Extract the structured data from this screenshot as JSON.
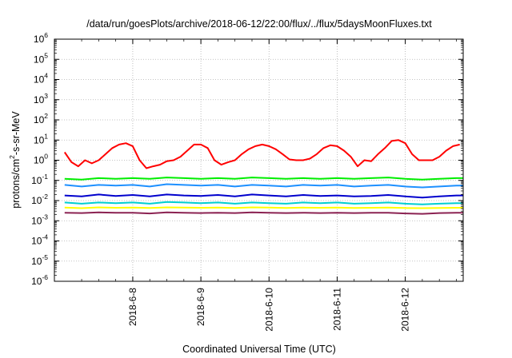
{
  "chart_data": {
    "type": "line",
    "title": "/data/run/goesPlots/archive/2018-06-12/22:00/flux/../flux/5daysMoonFluxes.txt",
    "xlabel": "Coordinated Universal Time (UTC)",
    "ylabel": "protons/cm²-s-sr-MeV",
    "ylabel_parts": [
      "protons/cm",
      "2",
      "-s-sr-MeV"
    ],
    "yscale": "log",
    "ylim": [
      1e-06,
      1000000.0
    ],
    "y_ticks": [
      {
        "value": -6,
        "base": "10",
        "exp": "-6"
      },
      {
        "value": -5,
        "base": "10",
        "exp": "-5"
      },
      {
        "value": -4,
        "base": "10",
        "exp": "-4"
      },
      {
        "value": -3,
        "base": "10",
        "exp": "-3"
      },
      {
        "value": -2,
        "base": "10",
        "exp": "-2"
      },
      {
        "value": -1,
        "base": "10",
        "exp": "-1"
      },
      {
        "value": 0,
        "base": "10",
        "exp": "0"
      },
      {
        "value": 1,
        "base": "10",
        "exp": "1"
      },
      {
        "value": 2,
        "base": "10",
        "exp": "2"
      },
      {
        "value": 3,
        "base": "10",
        "exp": "3"
      },
      {
        "value": 4,
        "base": "10",
        "exp": "4"
      },
      {
        "value": 5,
        "base": "10",
        "exp": "5"
      },
      {
        "value": 6,
        "base": "10",
        "exp": "6"
      }
    ],
    "x_ticks": [
      "2018-6-8",
      "2018-6-9",
      "2018-6-10",
      "2018-6-11",
      "2018-6-12"
    ],
    "xlim_days": [
      6.85,
      12.85
    ],
    "grid": true,
    "series": [
      {
        "color": "#ff0000",
        "x": [
          7.0,
          7.1,
          7.2,
          7.3,
          7.4,
          7.5,
          7.6,
          7.7,
          7.8,
          7.9,
          8.0,
          8.1,
          8.2,
          8.3,
          8.4,
          8.5,
          8.6,
          8.7,
          8.8,
          8.9,
          9.0,
          9.1,
          9.2,
          9.3,
          9.4,
          9.5,
          9.6,
          9.7,
          9.8,
          9.9,
          10.0,
          10.1,
          10.2,
          10.3,
          10.4,
          10.5,
          10.6,
          10.7,
          10.8,
          10.9,
          11.0,
          11.1,
          11.2,
          11.3,
          11.4,
          11.5,
          11.6,
          11.7,
          11.8,
          11.9,
          12.0,
          12.1,
          12.2,
          12.3,
          12.4,
          12.5,
          12.6,
          12.7,
          12.8
        ],
        "y": [
          2.5,
          0.8,
          0.5,
          1.0,
          0.7,
          1.0,
          2.0,
          4.0,
          6.0,
          7.0,
          5.0,
          1.0,
          0.4,
          0.5,
          0.6,
          0.9,
          1.0,
          1.5,
          3.0,
          6.0,
          6.0,
          4.0,
          1.0,
          0.6,
          0.8,
          1.0,
          2.0,
          3.5,
          5.0,
          6.0,
          5.0,
          3.5,
          2.0,
          1.1,
          1.0,
          1.0,
          1.2,
          2.0,
          4.0,
          5.5,
          5.0,
          3.0,
          1.5,
          0.5,
          1.0,
          0.9,
          2.0,
          4.0,
          9.0,
          10.0,
          7.0,
          2.0,
          1.0,
          1.0,
          1.0,
          1.5,
          3.0,
          5.0,
          6.0
        ]
      },
      {
        "color": "#00ee00",
        "x": [
          7.0,
          7.25,
          7.5,
          7.75,
          8.0,
          8.25,
          8.5,
          8.75,
          9.0,
          9.25,
          9.5,
          9.75,
          10.0,
          10.25,
          10.5,
          10.75,
          11.0,
          11.25,
          11.5,
          11.75,
          12.0,
          12.25,
          12.5,
          12.75,
          12.85
        ],
        "y": [
          0.12,
          0.11,
          0.13,
          0.12,
          0.13,
          0.12,
          0.14,
          0.13,
          0.12,
          0.13,
          0.12,
          0.14,
          0.13,
          0.12,
          0.13,
          0.12,
          0.13,
          0.12,
          0.13,
          0.14,
          0.12,
          0.11,
          0.12,
          0.13,
          0.13
        ]
      },
      {
        "color": "#1e90ff",
        "x": [
          7.0,
          7.25,
          7.5,
          7.75,
          8.0,
          8.25,
          8.5,
          8.75,
          9.0,
          9.25,
          9.5,
          9.75,
          10.0,
          10.25,
          10.5,
          10.75,
          11.0,
          11.25,
          11.5,
          11.75,
          12.0,
          12.25,
          12.5,
          12.75,
          12.85
        ],
        "y": [
          0.06,
          0.05,
          0.06,
          0.055,
          0.06,
          0.05,
          0.065,
          0.06,
          0.055,
          0.06,
          0.05,
          0.06,
          0.055,
          0.05,
          0.06,
          0.055,
          0.06,
          0.05,
          0.055,
          0.06,
          0.05,
          0.045,
          0.05,
          0.055,
          0.055
        ]
      },
      {
        "color": "#0000cd",
        "x": [
          7.0,
          7.25,
          7.5,
          7.75,
          8.0,
          8.25,
          8.5,
          8.75,
          9.0,
          9.25,
          9.5,
          9.75,
          10.0,
          10.25,
          10.5,
          10.75,
          11.0,
          11.25,
          11.5,
          11.75,
          12.0,
          12.25,
          12.5,
          12.75,
          12.85
        ],
        "y": [
          0.018,
          0.016,
          0.02,
          0.017,
          0.019,
          0.016,
          0.02,
          0.018,
          0.017,
          0.019,
          0.016,
          0.02,
          0.018,
          0.016,
          0.019,
          0.017,
          0.018,
          0.016,
          0.017,
          0.019,
          0.016,
          0.014,
          0.016,
          0.018,
          0.018
        ]
      },
      {
        "color": "#00ced1",
        "x": [
          7.0,
          7.25,
          7.5,
          7.75,
          8.0,
          8.25,
          8.5,
          8.75,
          9.0,
          9.25,
          9.5,
          9.75,
          10.0,
          10.25,
          10.5,
          10.75,
          11.0,
          11.25,
          11.5,
          11.75,
          12.0,
          12.25,
          12.5,
          12.75,
          12.85
        ],
        "y": [
          0.008,
          0.007,
          0.008,
          0.0075,
          0.008,
          0.007,
          0.0085,
          0.008,
          0.0075,
          0.008,
          0.007,
          0.008,
          0.0075,
          0.007,
          0.008,
          0.0075,
          0.008,
          0.007,
          0.0075,
          0.008,
          0.007,
          0.0065,
          0.007,
          0.0075,
          0.0075
        ]
      },
      {
        "color": "#ffff00",
        "x": [
          7.0,
          7.25,
          7.5,
          7.75,
          8.0,
          8.25,
          8.5,
          8.75,
          9.0,
          9.25,
          9.5,
          9.75,
          10.0,
          10.25,
          10.5,
          10.75,
          11.0,
          11.25,
          11.5,
          11.75,
          12.0,
          12.25,
          12.5,
          12.75,
          12.85
        ],
        "y": [
          0.0045,
          0.0042,
          0.0046,
          0.0044,
          0.0045,
          0.0043,
          0.0046,
          0.0045,
          0.0044,
          0.0045,
          0.0043,
          0.0046,
          0.0045,
          0.0043,
          0.0045,
          0.0044,
          0.0045,
          0.0043,
          0.0044,
          0.0045,
          0.0043,
          0.0042,
          0.0043,
          0.0044,
          0.0044
        ]
      },
      {
        "color": "#8b2252",
        "x": [
          7.0,
          7.25,
          7.5,
          7.75,
          8.0,
          8.25,
          8.5,
          8.75,
          9.0,
          9.25,
          9.5,
          9.75,
          10.0,
          10.25,
          10.5,
          10.75,
          11.0,
          11.25,
          11.5,
          11.75,
          12.0,
          12.25,
          12.5,
          12.75,
          12.85
        ],
        "y": [
          0.0025,
          0.0024,
          0.0026,
          0.0025,
          0.0025,
          0.0023,
          0.0026,
          0.0025,
          0.0024,
          0.0025,
          0.0024,
          0.0026,
          0.0025,
          0.0024,
          0.0025,
          0.0024,
          0.0025,
          0.0024,
          0.0025,
          0.0025,
          0.0023,
          0.0022,
          0.0024,
          0.0025,
          0.0025
        ]
      }
    ]
  }
}
